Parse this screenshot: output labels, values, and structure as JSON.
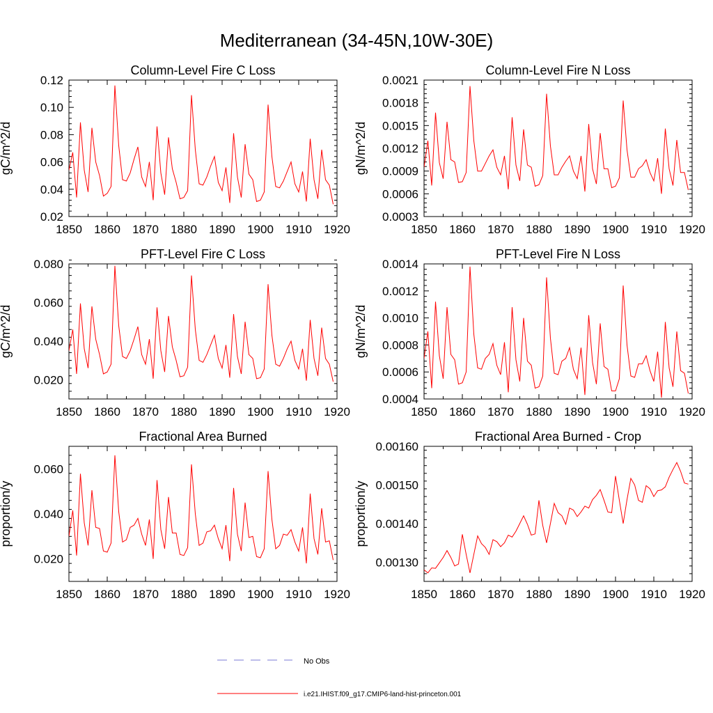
{
  "title": "Mediterranean (34-45N,10W-30E)",
  "colors": {
    "model": "#ff0000",
    "obs": "#7b7bd6",
    "axis": "#000000"
  },
  "legend": {
    "obs_label": "No Obs",
    "model_label": "i.e21.IHIST.f09_g17.CMIP6-land-hist-princeton.001"
  },
  "chart_data": [
    {
      "type": "line",
      "title": "Column-Level Fire C Loss",
      "ylabel": "gC/m^2/d",
      "xlim": [
        1850,
        1920
      ],
      "ylim": [
        0.02,
        0.12
      ],
      "xticks": [
        "1850",
        "1860",
        "1870",
        "1880",
        "1890",
        "1900",
        "1910",
        "1920"
      ],
      "yticks": [
        "0.02",
        "0.04",
        "0.06",
        "0.08",
        "0.10",
        "0.12"
      ],
      "series": [
        {
          "x_start": 1850,
          "values": [
            0.054,
            0.067,
            0.034,
            0.089,
            0.054,
            0.038,
            0.085,
            0.06,
            0.05,
            0.035,
            0.037,
            0.042,
            0.116,
            0.072,
            0.047,
            0.046,
            0.052,
            0.062,
            0.071,
            0.049,
            0.042,
            0.06,
            0.032,
            0.086,
            0.052,
            0.036,
            0.078,
            0.055,
            0.045,
            0.033,
            0.034,
            0.039,
            0.109,
            0.069,
            0.044,
            0.043,
            0.049,
            0.057,
            0.064,
            0.045,
            0.039,
            0.056,
            0.03,
            0.081,
            0.049,
            0.034,
            0.073,
            0.051,
            0.047,
            0.031,
            0.032,
            0.038,
            0.102,
            0.064,
            0.042,
            0.041,
            0.046,
            0.053,
            0.06,
            0.044,
            0.038,
            0.053,
            0.031,
            0.077,
            0.047,
            0.033,
            0.069,
            0.047,
            0.043,
            0.029
          ]
        }
      ]
    },
    {
      "type": "line",
      "title": "Column-Level Fire N Loss",
      "ylabel": "gN/m^2/d",
      "xlim": [
        1850,
        1920
      ],
      "ylim": [
        0.0003,
        0.0021
      ],
      "xticks": [
        "1850",
        "1860",
        "1870",
        "1880",
        "1890",
        "1900",
        "1910",
        "1920"
      ],
      "yticks": [
        "0.0003",
        "0.0006",
        "0.0009",
        "0.0012",
        "0.0015",
        "0.0018",
        "0.0021"
      ],
      "series": [
        {
          "x_start": 1850,
          "values": [
            0.00095,
            0.0013,
            0.00071,
            0.00167,
            0.00101,
            0.0008,
            0.00155,
            0.00105,
            0.00102,
            0.00075,
            0.00076,
            0.00088,
            0.00202,
            0.0013,
            0.0009,
            0.0009,
            0.001,
            0.0011,
            0.00118,
            0.00095,
            0.00085,
            0.0011,
            0.00066,
            0.00161,
            0.00098,
            0.00077,
            0.00145,
            0.00098,
            0.00095,
            0.0007,
            0.00072,
            0.00084,
            0.00192,
            0.00123,
            0.00085,
            0.00085,
            0.00095,
            0.00103,
            0.0011,
            0.0009,
            0.0008,
            0.0011,
            0.00063,
            0.00152,
            0.00093,
            0.00073,
            0.0014,
            0.00093,
            0.00093,
            0.00068,
            0.0007,
            0.00081,
            0.00183,
            0.00118,
            0.00082,
            0.00082,
            0.00093,
            0.00097,
            0.00105,
            0.00088,
            0.00077,
            0.00107,
            0.0006,
            0.00146,
            0.00093,
            0.00071,
            0.00131,
            0.00088,
            0.00088,
            0.00065
          ]
        }
      ]
    },
    {
      "type": "line",
      "title": "PFT-Level Fire C Loss",
      "ylabel": "gC/m^2/d",
      "xlim": [
        1850,
        1920
      ],
      "ylim": [
        0.01,
        0.08
      ],
      "xticks": [
        "1850",
        "1860",
        "1870",
        "1880",
        "1890",
        "1900",
        "1910",
        "1920"
      ],
      "yticks": [
        "0.020",
        "0.040",
        "0.060",
        "0.080"
      ],
      "series": [
        {
          "x_start": 1850,
          "values": [
            0.035,
            0.046,
            0.023,
            0.0595,
            0.036,
            0.026,
            0.058,
            0.041,
            0.033,
            0.023,
            0.024,
            0.028,
            0.079,
            0.048,
            0.032,
            0.031,
            0.035,
            0.041,
            0.0475,
            0.033,
            0.028,
            0.041,
            0.0205,
            0.0575,
            0.035,
            0.024,
            0.053,
            0.037,
            0.03,
            0.0215,
            0.022,
            0.0265,
            0.074,
            0.046,
            0.03,
            0.029,
            0.033,
            0.038,
            0.043,
            0.031,
            0.026,
            0.038,
            0.021,
            0.054,
            0.032,
            0.023,
            0.05,
            0.033,
            0.031,
            0.0205,
            0.021,
            0.0255,
            0.0695,
            0.043,
            0.028,
            0.027,
            0.031,
            0.036,
            0.04,
            0.03,
            0.0255,
            0.036,
            0.0195,
            0.051,
            0.031,
            0.022,
            0.047,
            0.031,
            0.028,
            0.019
          ]
        }
      ]
    },
    {
      "type": "line",
      "title": "PFT-Level Fire N Loss",
      "ylabel": "gN/m^2/d",
      "xlim": [
        1850,
        1920
      ],
      "ylim": [
        0.0004,
        0.0014
      ],
      "xticks": [
        "1850",
        "1860",
        "1870",
        "1880",
        "1890",
        "1900",
        "1910",
        "1920"
      ],
      "yticks": [
        "0.0004",
        "0.0006",
        "0.0008",
        "0.0010",
        "0.0012",
        "0.0014"
      ],
      "series": [
        {
          "x_start": 1850,
          "values": [
            0.0007,
            0.0009,
            0.00048,
            0.00112,
            0.00072,
            0.00055,
            0.00108,
            0.00073,
            0.00069,
            0.00051,
            0.00052,
            0.0006,
            0.00138,
            0.00088,
            0.00063,
            0.00062,
            0.0007,
            0.00073,
            0.00081,
            0.00065,
            0.00058,
            0.00082,
            0.00045,
            0.00108,
            0.00069,
            0.00053,
            0.001,
            0.00068,
            0.00065,
            0.00048,
            0.00049,
            0.00057,
            0.0013,
            0.00085,
            0.00059,
            0.00058,
            0.00068,
            0.0007,
            0.00078,
            0.00062,
            0.00055,
            0.00078,
            0.00043,
            0.00102,
            0.00067,
            0.00051,
            0.00096,
            0.00064,
            0.00062,
            0.00046,
            0.00046,
            0.00055,
            0.00124,
            0.0008,
            0.00057,
            0.00056,
            0.00066,
            0.00066,
            0.00072,
            0.00061,
            0.00053,
            0.00075,
            0.00041,
            0.00097,
            0.00063,
            0.00049,
            0.0009,
            0.00061,
            0.00059,
            0.00044
          ]
        }
      ]
    },
    {
      "type": "line",
      "title": "Fractional Area Burned",
      "ylabel": "proportion/y",
      "xlim": [
        1850,
        1920
      ],
      "ylim": [
        0.01,
        0.07
      ],
      "xticks": [
        "1850",
        "1860",
        "1870",
        "1880",
        "1890",
        "1900",
        "1910",
        "1920"
      ],
      "yticks": [
        "0.020",
        "0.040",
        "0.060"
      ],
      "series": [
        {
          "x_start": 1850,
          "values": [
            0.03,
            0.0415,
            0.0215,
            0.0578,
            0.036,
            0.026,
            0.0505,
            0.034,
            0.0335,
            0.0235,
            0.023,
            0.027,
            0.066,
            0.041,
            0.0275,
            0.0285,
            0.034,
            0.035,
            0.038,
            0.031,
            0.026,
            0.0375,
            0.02,
            0.055,
            0.033,
            0.0245,
            0.0475,
            0.0315,
            0.0315,
            0.022,
            0.0215,
            0.025,
            0.062,
            0.04,
            0.026,
            0.027,
            0.032,
            0.0325,
            0.035,
            0.029,
            0.0245,
            0.035,
            0.019,
            0.0515,
            0.031,
            0.0235,
            0.045,
            0.0295,
            0.03,
            0.021,
            0.0205,
            0.0245,
            0.059,
            0.0375,
            0.0245,
            0.026,
            0.031,
            0.0305,
            0.033,
            0.0275,
            0.0235,
            0.034,
            0.018,
            0.049,
            0.029,
            0.022,
            0.0425,
            0.0275,
            0.028,
            0.0195
          ]
        }
      ]
    },
    {
      "type": "line",
      "title": "Fractional Area Burned - Crop",
      "ylabel": "proportion/y",
      "xlim": [
        1850,
        1920
      ],
      "ylim": [
        0.00125,
        0.0016
      ],
      "xticks": [
        "1850",
        "1860",
        "1870",
        "1880",
        "1890",
        "1900",
        "1910",
        "1920"
      ],
      "yticks": [
        "0.00130",
        "0.00140",
        "0.00150",
        "0.00160"
      ],
      "series": [
        {
          "x_start": 1850,
          "values": [
            0.00128,
            0.001272,
            0.001285,
            0.001284,
            0.001298,
            0.001312,
            0.00133,
            0.001312,
            0.00129,
            0.001295,
            0.001372,
            0.00132,
            0.001272,
            0.00132,
            0.001368,
            0.001348,
            0.001338,
            0.00132,
            0.001358,
            0.001353,
            0.00134,
            0.00135,
            0.00137,
            0.001365,
            0.00138,
            0.0014,
            0.00142,
            0.001398,
            0.00137,
            0.001373,
            0.00146,
            0.001395,
            0.00135,
            0.0014,
            0.001452,
            0.001428,
            0.00142,
            0.001398,
            0.00144,
            0.001435,
            0.001418,
            0.00143,
            0.001445,
            0.00144,
            0.001462,
            0.001473,
            0.001488,
            0.00146,
            0.00143,
            0.001428,
            0.001523,
            0.00146,
            0.0014,
            0.001462,
            0.001517,
            0.0015,
            0.00146,
            0.001455,
            0.001498,
            0.00149,
            0.00147,
            0.001485,
            0.001487,
            0.001495,
            0.00152,
            0.00154,
            0.001558,
            0.001535,
            0.001505,
            0.001502
          ]
        }
      ]
    }
  ]
}
